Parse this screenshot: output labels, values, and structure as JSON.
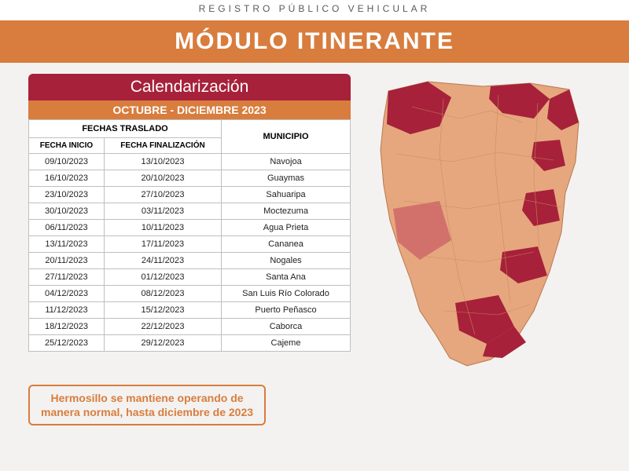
{
  "header": {
    "subtitle": "REGISTRO PÚBLICO VEHICULAR",
    "banner": "MÓDULO ITINERANTE"
  },
  "table": {
    "title": "Calendarización",
    "period": "OCTUBRE - DICIEMBRE 2023",
    "group_left": "FECHAS TRASLADO",
    "group_right": "MUNICIPIO",
    "col_start": "FECHA INICIO",
    "col_end": "FECHA FINALIZACIÓN",
    "rows": [
      {
        "start": "09/10/2023",
        "end": "13/10/2023",
        "muni": "Navojoa"
      },
      {
        "start": "16/10/2023",
        "end": "20/10/2023",
        "muni": "Guaymas"
      },
      {
        "start": "23/10/2023",
        "end": "27/10/2023",
        "muni": "Sahuaripa"
      },
      {
        "start": "30/10/2023",
        "end": "03/11/2023",
        "muni": "Moctezuma"
      },
      {
        "start": "06/11/2023",
        "end": "10/11/2023",
        "muni": "Agua Prieta"
      },
      {
        "start": "13/11/2023",
        "end": "17/11/2023",
        "muni": "Cananea"
      },
      {
        "start": "20/11/2023",
        "end": "24/11/2023",
        "muni": "Nogales"
      },
      {
        "start": "27/11/2023",
        "end": "01/12/2023",
        "muni": "Santa Ana"
      },
      {
        "start": "04/12/2023",
        "end": "08/12/2023",
        "muni": "San Luis Río Colorado"
      },
      {
        "start": "11/12/2023",
        "end": "15/12/2023",
        "muni": "Puerto Peñasco"
      },
      {
        "start": "18/12/2023",
        "end": "22/12/2023",
        "muni": "Caborca"
      },
      {
        "start": "25/12/2023",
        "end": "29/12/2023",
        "muni": "Cajeme"
      }
    ]
  },
  "note": {
    "line1": "Hermosillo se mantiene operando de",
    "line2": "manera normal, hasta diciembre de 2023"
  },
  "colors": {
    "primary": "#a7213a",
    "accent": "#d87d3e",
    "map_base": "#e6a77e",
    "map_highlight": "#a7213a",
    "map_mid": "#d2716c",
    "background": "#f4f2f0"
  }
}
